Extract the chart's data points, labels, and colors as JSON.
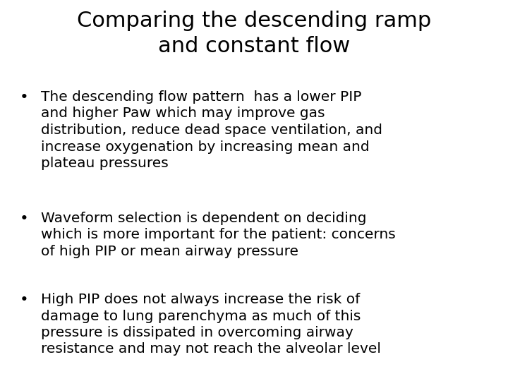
{
  "title_line1": "Comparing the descending ramp",
  "title_line2": "and constant flow",
  "bullets": [
    "The descending flow pattern  has a lower PIP\nand higher Paw which may improve gas\ndistribution, reduce dead space ventilation, and\nincrease oxygenation by increasing mean and\nplateau pressures",
    "Waveform selection is dependent on deciding\nwhich is more important for the patient: concerns\nof high PIP or mean airway pressure",
    "High PIP does not always increase the risk of\ndamage to lung parenchyma as much of this\npressure is dissipated in overcoming airway\nresistance and may not reach the alveolar level"
  ],
  "background_color": "#ffffff",
  "text_color": "#000000",
  "title_fontsize": 22,
  "bullet_fontsize": 14.5,
  "title_font_weight": "normal",
  "font_family": "DejaVu Sans"
}
